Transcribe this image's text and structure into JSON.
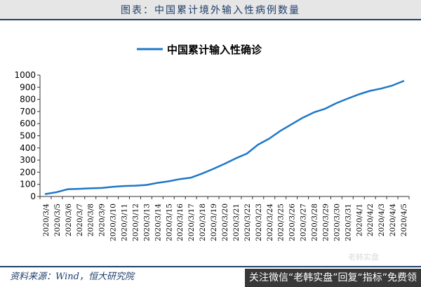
{
  "header": {
    "title": "图表：中国累计境外输入性病例数量"
  },
  "footer": {
    "source": "资料来源：Wind，恒大研究院",
    "watermark": "关注微信“老韩实盘”回复“指标”免费领",
    "watermark_faint": "老韩实盘"
  },
  "colors": {
    "line": "#1f77c8",
    "accent": "#1f3f6b"
  },
  "chart_data": {
    "type": "line",
    "title": "",
    "xlabel": "",
    "ylabel": "",
    "ylim": [
      0,
      1000
    ],
    "yticks": [
      0,
      100,
      200,
      300,
      400,
      500,
      600,
      700,
      800,
      900,
      1000
    ],
    "grid": false,
    "legend_position": "top",
    "categories": [
      "2020/3/4",
      "2020/3/5",
      "2020/3/6",
      "2020/3/7",
      "2020/3/8",
      "2020/3/9",
      "2020/3/10",
      "2020/3/11",
      "2020/3/12",
      "2020/3/13",
      "2020/3/14",
      "2020/3/15",
      "2020/3/16",
      "2020/3/17",
      "2020/3/18",
      "2020/3/19",
      "2020/3/20",
      "2020/3/21",
      "2020/3/22",
      "2020/3/23",
      "2020/3/24",
      "2020/3/25",
      "2020/3/26",
      "2020/3/27",
      "2020/3/28",
      "2020/3/29",
      "2020/3/30",
      "2020/3/31",
      "2020/4/1",
      "2020/4/2",
      "2020/4/3",
      "2020/4/4",
      "2020/4/5"
    ],
    "series": [
      {
        "name": "中国累计输入性确诊",
        "values": [
          20,
          36,
          60,
          63,
          67,
          70,
          79,
          86,
          89,
          95,
          112,
          125,
          143,
          155,
          189,
          228,
          269,
          314,
          353,
          427,
          477,
          541,
          595,
          649,
          693,
          723,
          769,
          806,
          841,
          870,
          889,
          914,
          951
        ]
      }
    ]
  }
}
